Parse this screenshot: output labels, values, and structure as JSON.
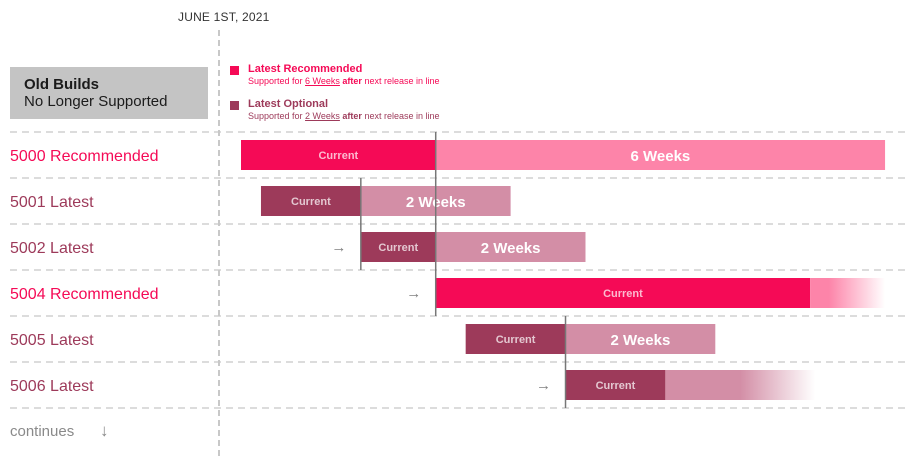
{
  "date_marker": "JUNE 1ST, 2021",
  "old_builds": {
    "title": "Old Builds",
    "subtitle": "No Longer Supported"
  },
  "legend": [
    {
      "title": "Latest Recommended",
      "desc_pre": "Supported for ",
      "desc_weeks": "6 Weeks",
      "desc_after": "after",
      "desc_post": " next release in line",
      "color": "#f50a56"
    },
    {
      "title": "Latest Optional",
      "desc_pre": "Supported for ",
      "desc_weeks": "2 Weeks",
      "desc_after": "after",
      "desc_post": " next release in line",
      "color": "#9d3a5a"
    }
  ],
  "footer": {
    "continues": "continues",
    "arrow": "↓"
  },
  "colors": {
    "recommended": "#f50a56",
    "recommended_light": "#fd84a9",
    "optional": "#9d3a5a",
    "optional_light": "#d38ea6",
    "recommended_text": "#f50a56",
    "optional_text": "#9d3a5a",
    "gridline": "#c8c8c8",
    "marker": "#777777"
  },
  "chart_data": {
    "type": "gantt",
    "rows": [
      {
        "label": "5000 Recommended",
        "kind": "recommended",
        "segments": [
          {
            "text": "Current",
            "kind": "current",
            "start": 0,
            "end": 3.9
          },
          {
            "text": "6 Weeks",
            "kind": "support",
            "start": 3.9,
            "end": 12.9
          }
        ]
      },
      {
        "label": "5001 Latest",
        "kind": "optional",
        "segments": [
          {
            "text": "Current",
            "kind": "current",
            "start": 0.4,
            "end": 2.4
          },
          {
            "text": "2 Weeks",
            "kind": "support",
            "start": 2.4,
            "end": 5.4
          }
        ]
      },
      {
        "label": "5002 Latest",
        "kind": "optional",
        "arrow": "→",
        "segments": [
          {
            "text": "Current",
            "kind": "current",
            "start": 2.4,
            "end": 3.9
          },
          {
            "text": "2 Weeks",
            "kind": "support",
            "start": 3.9,
            "end": 6.9
          }
        ]
      },
      {
        "label": "5004 Recommended",
        "kind": "recommended",
        "arrow": "→",
        "segments": [
          {
            "text": "Current",
            "kind": "current",
            "start": 3.9,
            "end": 11.4
          },
          {
            "text": "",
            "kind": "support_fade",
            "start": 11.4,
            "end": 12.9
          }
        ]
      },
      {
        "label": "5005 Latest",
        "kind": "optional",
        "segments": [
          {
            "text": "Current",
            "kind": "current",
            "start": 4.5,
            "end": 6.5
          },
          {
            "text": "2 Weeks",
            "kind": "support",
            "start": 6.5,
            "end": 9.5
          }
        ]
      },
      {
        "label": "5006 Latest",
        "kind": "optional",
        "arrow": "→",
        "segments": [
          {
            "text": "Current",
            "kind": "current",
            "start": 6.5,
            "end": 8.5
          },
          {
            "text": "",
            "kind": "support_fade",
            "start": 8.5,
            "end": 11.5
          }
        ]
      }
    ],
    "release_markers": [
      {
        "x": 3.9,
        "from_row": 0,
        "to_row": 3
      },
      {
        "x": 2.4,
        "from_row": 1,
        "to_row": 2
      },
      {
        "x": 6.5,
        "from_row": 4,
        "to_row": 5
      }
    ],
    "x_range": [
      0,
      13.6
    ]
  }
}
